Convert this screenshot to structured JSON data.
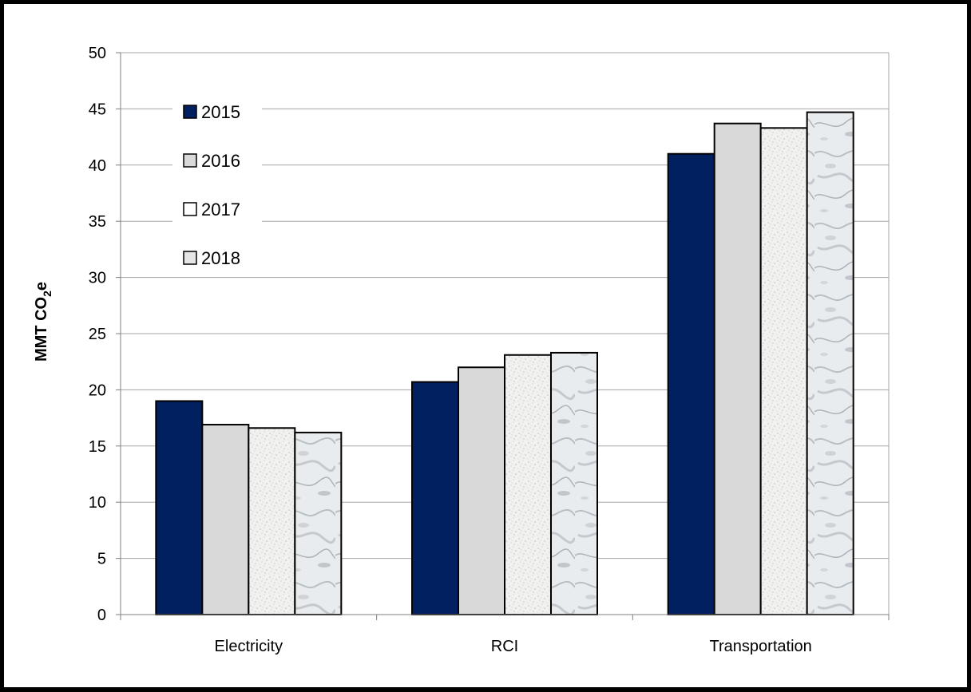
{
  "chart_data": {
    "type": "bar",
    "title": "",
    "xlabel": "",
    "ylabel": "MMT CO",
    "ylabel_subscript": "2",
    "ylabel_suffix": "e",
    "ylim": [
      0,
      50
    ],
    "ytick_step": 5,
    "yticks": [
      "0",
      "5",
      "10",
      "15",
      "20",
      "25",
      "30",
      "35",
      "40",
      "45",
      "50"
    ],
    "grid": true,
    "legend_position": "upper-left inside plot",
    "categories": [
      "Electricity",
      "RCI",
      "Transportation"
    ],
    "series": [
      {
        "name": "2015",
        "values": [
          19.0,
          20.7,
          41.0
        ],
        "color": "#002060",
        "pattern": "solid"
      },
      {
        "name": "2016",
        "values": [
          16.9,
          22.0,
          43.7
        ],
        "color": "#d9d9d9",
        "pattern": "solid"
      },
      {
        "name": "2017",
        "values": [
          16.6,
          23.1,
          43.3
        ],
        "color": "#f2f2f2",
        "pattern": "speckled"
      },
      {
        "name": "2018",
        "values": [
          16.2,
          23.3,
          44.7
        ],
        "color": "#e8ecef",
        "pattern": "marble"
      }
    ]
  }
}
